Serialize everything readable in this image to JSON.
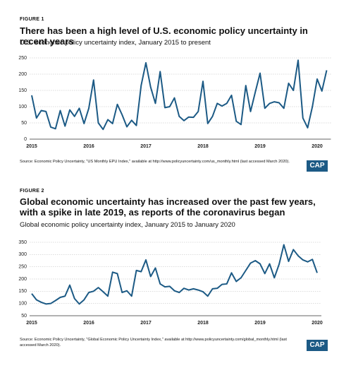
{
  "chart_data": [
    {
      "type": "line",
      "figure_label": "FIGURE 1",
      "title": "There has been a high level of U.S. economic policy uncertainty in recent years",
      "subtitle": "U.S. economic policy uncertainty index, January 2015 to present",
      "source": "Source: Economic Policy Uncertainty, \"US Monthly EPU Index,\" available at http://www.policyuncertainty.com/us_monthly.html (last accessed March 2020).",
      "logo": "CAP",
      "color": "#1c5a85",
      "grid": true,
      "categories": [
        "2015",
        null,
        null,
        null,
        null,
        null,
        null,
        null,
        null,
        null,
        null,
        null,
        "2016",
        null,
        null,
        null,
        null,
        null,
        null,
        null,
        null,
        null,
        null,
        null,
        "2017",
        null,
        null,
        null,
        null,
        null,
        null,
        null,
        null,
        null,
        null,
        null,
        "2018",
        null,
        null,
        null,
        null,
        null,
        null,
        null,
        null,
        null,
        null,
        null,
        "2019",
        null,
        null,
        null,
        null,
        null,
        null,
        null,
        null,
        null,
        null,
        null,
        "2020",
        null,
        null
      ],
      "values": [
        135,
        65,
        88,
        85,
        37,
        32,
        88,
        40,
        90,
        70,
        95,
        48,
        95,
        182,
        50,
        30,
        60,
        48,
        107,
        75,
        38,
        58,
        42,
        165,
        235,
        160,
        110,
        208,
        97,
        100,
        127,
        70,
        57,
        68,
        67,
        85,
        178,
        48,
        70,
        110,
        102,
        110,
        135,
        55,
        45,
        165,
        85,
        145,
        203,
        95,
        110,
        115,
        112,
        95,
        172,
        150,
        243,
        65,
        35,
        100,
        185,
        148,
        212
      ],
      "ylim": [
        0,
        250
      ],
      "yticks": [
        0,
        50,
        100,
        150,
        200,
        250
      ]
    },
    {
      "type": "line",
      "figure_label": "FIGURE 2",
      "title": "Global economic uncertainty has increased over the past few years, with a spike in late 2019, as reports of the coronavirus began",
      "subtitle": "Global economic policy uncertainty index, January 2015 to January 2020",
      "source": "Source: Economic Policy Uncertainty, \"Global Economic Policy Uncertainty Index,\" available at http://www.policyuncertainty.com/global_monthly.html (last accessed March 2020).",
      "logo": "CAP",
      "color": "#1c5a85",
      "grid": true,
      "categories": [
        "2015",
        null,
        null,
        null,
        null,
        null,
        null,
        null,
        null,
        null,
        null,
        null,
        "2016",
        null,
        null,
        null,
        null,
        null,
        null,
        null,
        null,
        null,
        null,
        null,
        "2017",
        null,
        null,
        null,
        null,
        null,
        null,
        null,
        null,
        null,
        null,
        null,
        "2018",
        null,
        null,
        null,
        null,
        null,
        null,
        null,
        null,
        null,
        null,
        null,
        "2019",
        null,
        null,
        null,
        null,
        null,
        null,
        null,
        null,
        null,
        null,
        null,
        "2020"
      ],
      "values": [
        140,
        115,
        105,
        98,
        100,
        112,
        125,
        130,
        175,
        120,
        98,
        115,
        145,
        150,
        165,
        148,
        130,
        228,
        222,
        145,
        152,
        130,
        235,
        230,
        278,
        210,
        245,
        180,
        168,
        170,
        152,
        145,
        162,
        155,
        160,
        155,
        148,
        130,
        160,
        162,
        178,
        180,
        225,
        190,
        205,
        235,
        265,
        275,
        262,
        222,
        262,
        205,
        260,
        340,
        272,
        320,
        295,
        278,
        270,
        280,
        225
      ],
      "ylim": [
        50,
        350
      ],
      "yticks": [
        50,
        100,
        150,
        200,
        250,
        300,
        350
      ]
    }
  ]
}
